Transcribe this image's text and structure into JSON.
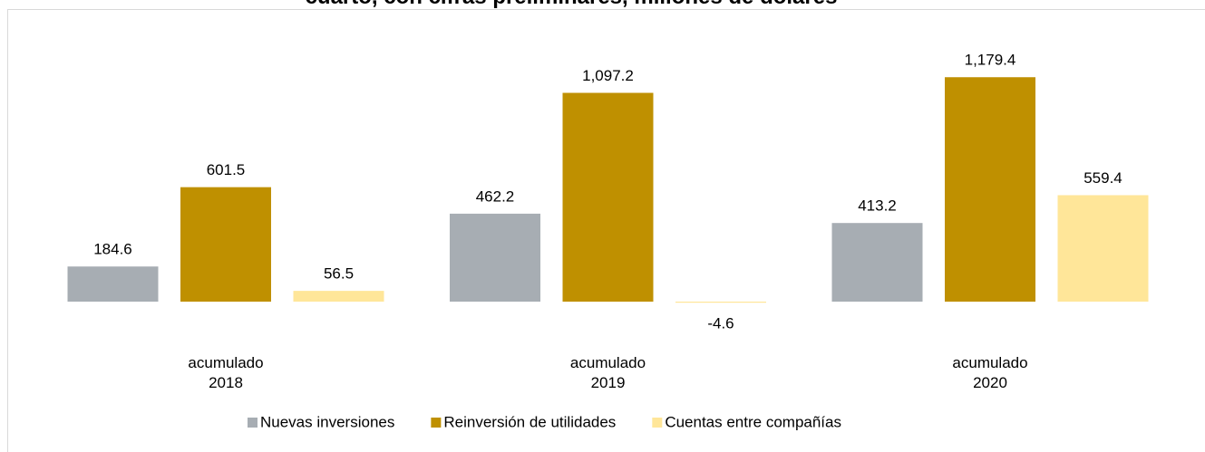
{
  "chart_data": {
    "type": "bar",
    "title": "cuarto, con cifras preliminares, millones de dólares",
    "categories": [
      "acumulado 2018",
      "acumulado 2019",
      "acumulado 2020"
    ],
    "series": [
      {
        "name": "Nuevas inversiones",
        "color": "#a7adb3",
        "values": [
          184.6,
          462.2,
          413.2
        ]
      },
      {
        "name": "Reinversión de utilidades",
        "color": "#bf9000",
        "values": [
          601.5,
          1097.2,
          1179.4
        ]
      },
      {
        "name": "Cuentas entre compañías",
        "color": "#ffe699",
        "values": [
          56.5,
          -4.6,
          559.4
        ]
      }
    ],
    "value_labels": [
      [
        "184.6",
        "462.2",
        "413.2"
      ],
      [
        "601.5",
        "1,097.2",
        "1,179.4"
      ],
      [
        "56.5",
        "-4.6",
        "559.4"
      ]
    ],
    "ylim": [
      -150,
      1440
    ],
    "legend": "bottom"
  }
}
